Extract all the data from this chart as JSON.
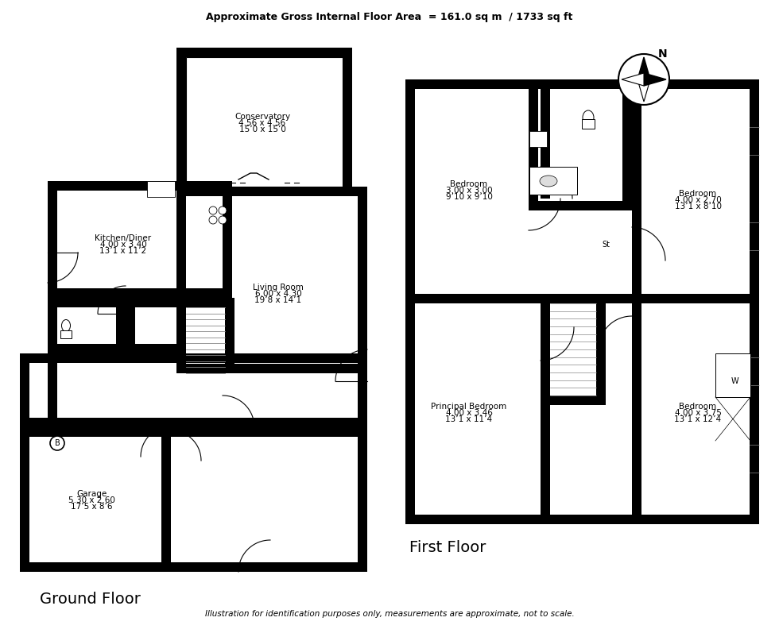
{
  "title": "Approximate Gross Internal Floor Area  = 161.0 sq m  / 1733 sq ft",
  "footer": "Illustration for identification purposes only, measurements are approximate, not to scale.",
  "ground_floor_label": "Ground Floor",
  "first_floor_label": "First Floor",
  "bg_color": "#ffffff",
  "room_labels": {
    "conservatory": [
      "Conservatory",
      "4.56 x 4.56",
      "15’0 x 15’0"
    ],
    "kitchen": [
      "Kitchen/Diner",
      "4.00 x 3.40",
      "13’1 x 11’2"
    ],
    "living": [
      "Living Room",
      "6.00 x 4.30",
      "19’8 x 14’1"
    ],
    "garage": [
      "Garage",
      "5.30 x 2.60",
      "17’5 x 8’6"
    ],
    "bed1": [
      "Bedroom",
      "3.00 x 3.00",
      "9’10 x 9’10"
    ],
    "bed2": [
      "Bedroom",
      "4.00 x 2.70",
      "13’1 x 8’10"
    ],
    "principal": [
      "Principal Bedroom",
      "4.00 x 3.46",
      "13’1 x 11’4"
    ],
    "bed4": [
      "Bedroom",
      "4.00 x 3.75",
      "13’1 x 12’4"
    ]
  }
}
